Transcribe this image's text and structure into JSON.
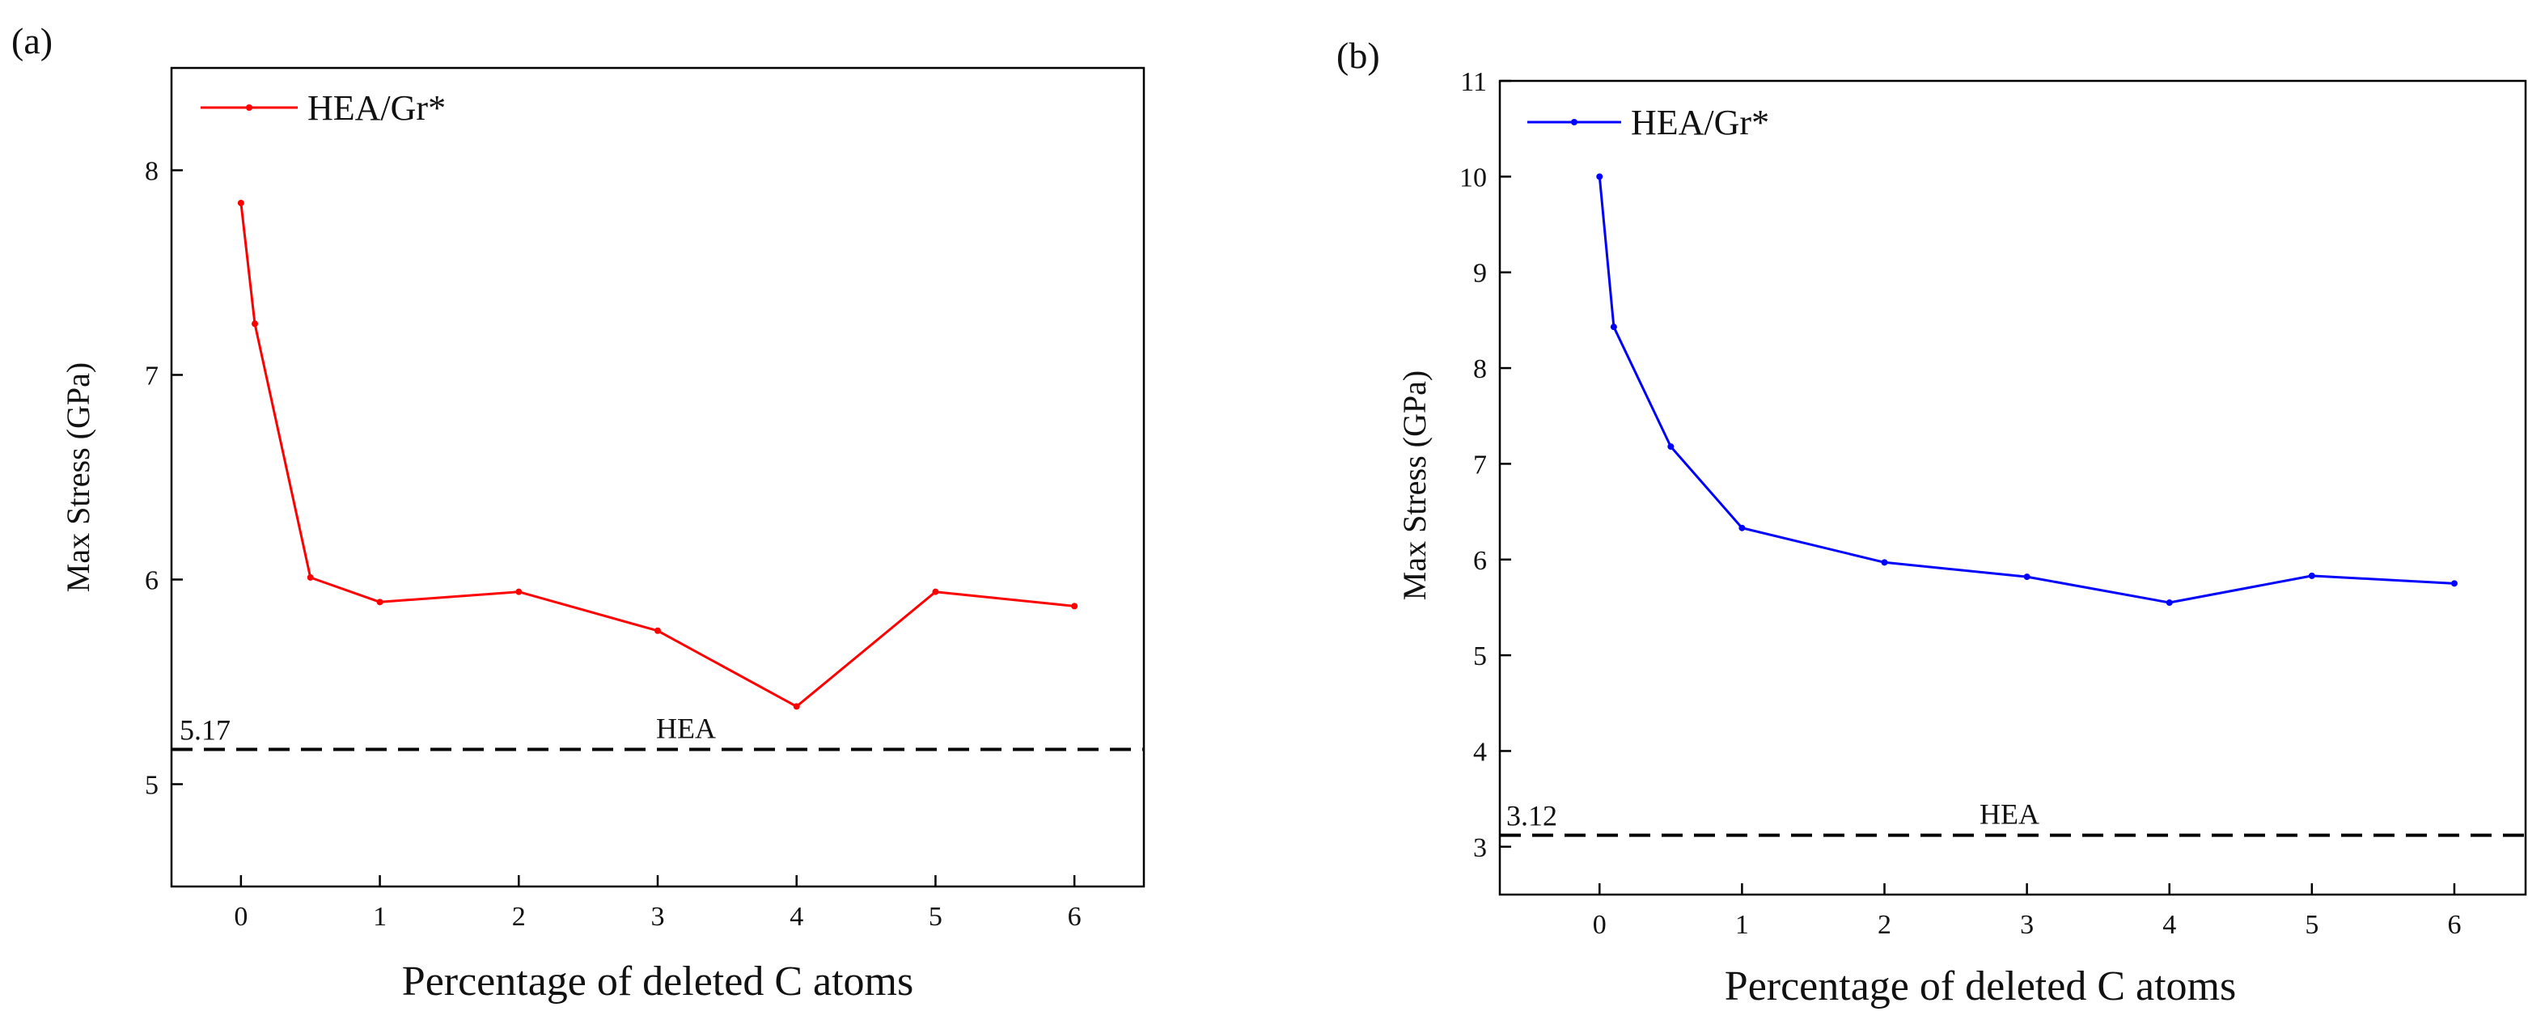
{
  "chart_data": [
    {
      "type": "line",
      "panel_label": "(a)",
      "title": "",
      "xlabel": "Percentage of deleted C atoms",
      "ylabel": "Max Stress (GPa)",
      "xlim": [
        -0.5,
        6.5
      ],
      "ylim": [
        4.5,
        8.5
      ],
      "xticks": [
        0,
        1,
        2,
        3,
        4,
        5,
        6
      ],
      "yticks": [
        5,
        6,
        7,
        8
      ],
      "grid": false,
      "legend_position": "top-left",
      "series": [
        {
          "name": "HEA/Gr*",
          "color": "#ff0000",
          "x": [
            0,
            0.1,
            0.5,
            1,
            2,
            3,
            4,
            5,
            6
          ],
          "values": [
            7.84,
            7.25,
            6.01,
            5.89,
            5.94,
            5.75,
            5.38,
            5.94,
            5.87
          ]
        }
      ],
      "reference_line": {
        "label": "HEA",
        "value_label": "5.17",
        "y": 5.17,
        "color": "#000000",
        "style": "dashed"
      }
    },
    {
      "type": "line",
      "panel_label": "(b)",
      "title": "",
      "xlabel": "Percentage of deleted C atoms",
      "ylabel": "Max Stress (GPa)",
      "xlim": [
        -0.7,
        6.5
      ],
      "ylim": [
        2.5,
        11
      ],
      "xticks": [
        0,
        1,
        2,
        3,
        4,
        5,
        6
      ],
      "yticks": [
        3,
        4,
        5,
        6,
        7,
        8,
        9,
        10,
        11
      ],
      "grid": false,
      "legend_position": "top-left",
      "series": [
        {
          "name": "HEA/Gr*",
          "color": "#0000ff",
          "x": [
            0,
            0.1,
            0.5,
            1,
            2,
            3,
            4,
            5,
            6
          ],
          "values": [
            10.0,
            8.43,
            7.18,
            6.33,
            5.97,
            5.82,
            5.55,
            5.83,
            5.75
          ]
        }
      ],
      "reference_line": {
        "label": "HEA",
        "value_label": "3.12",
        "y": 3.12,
        "color": "#000000",
        "style": "dashed"
      }
    }
  ]
}
